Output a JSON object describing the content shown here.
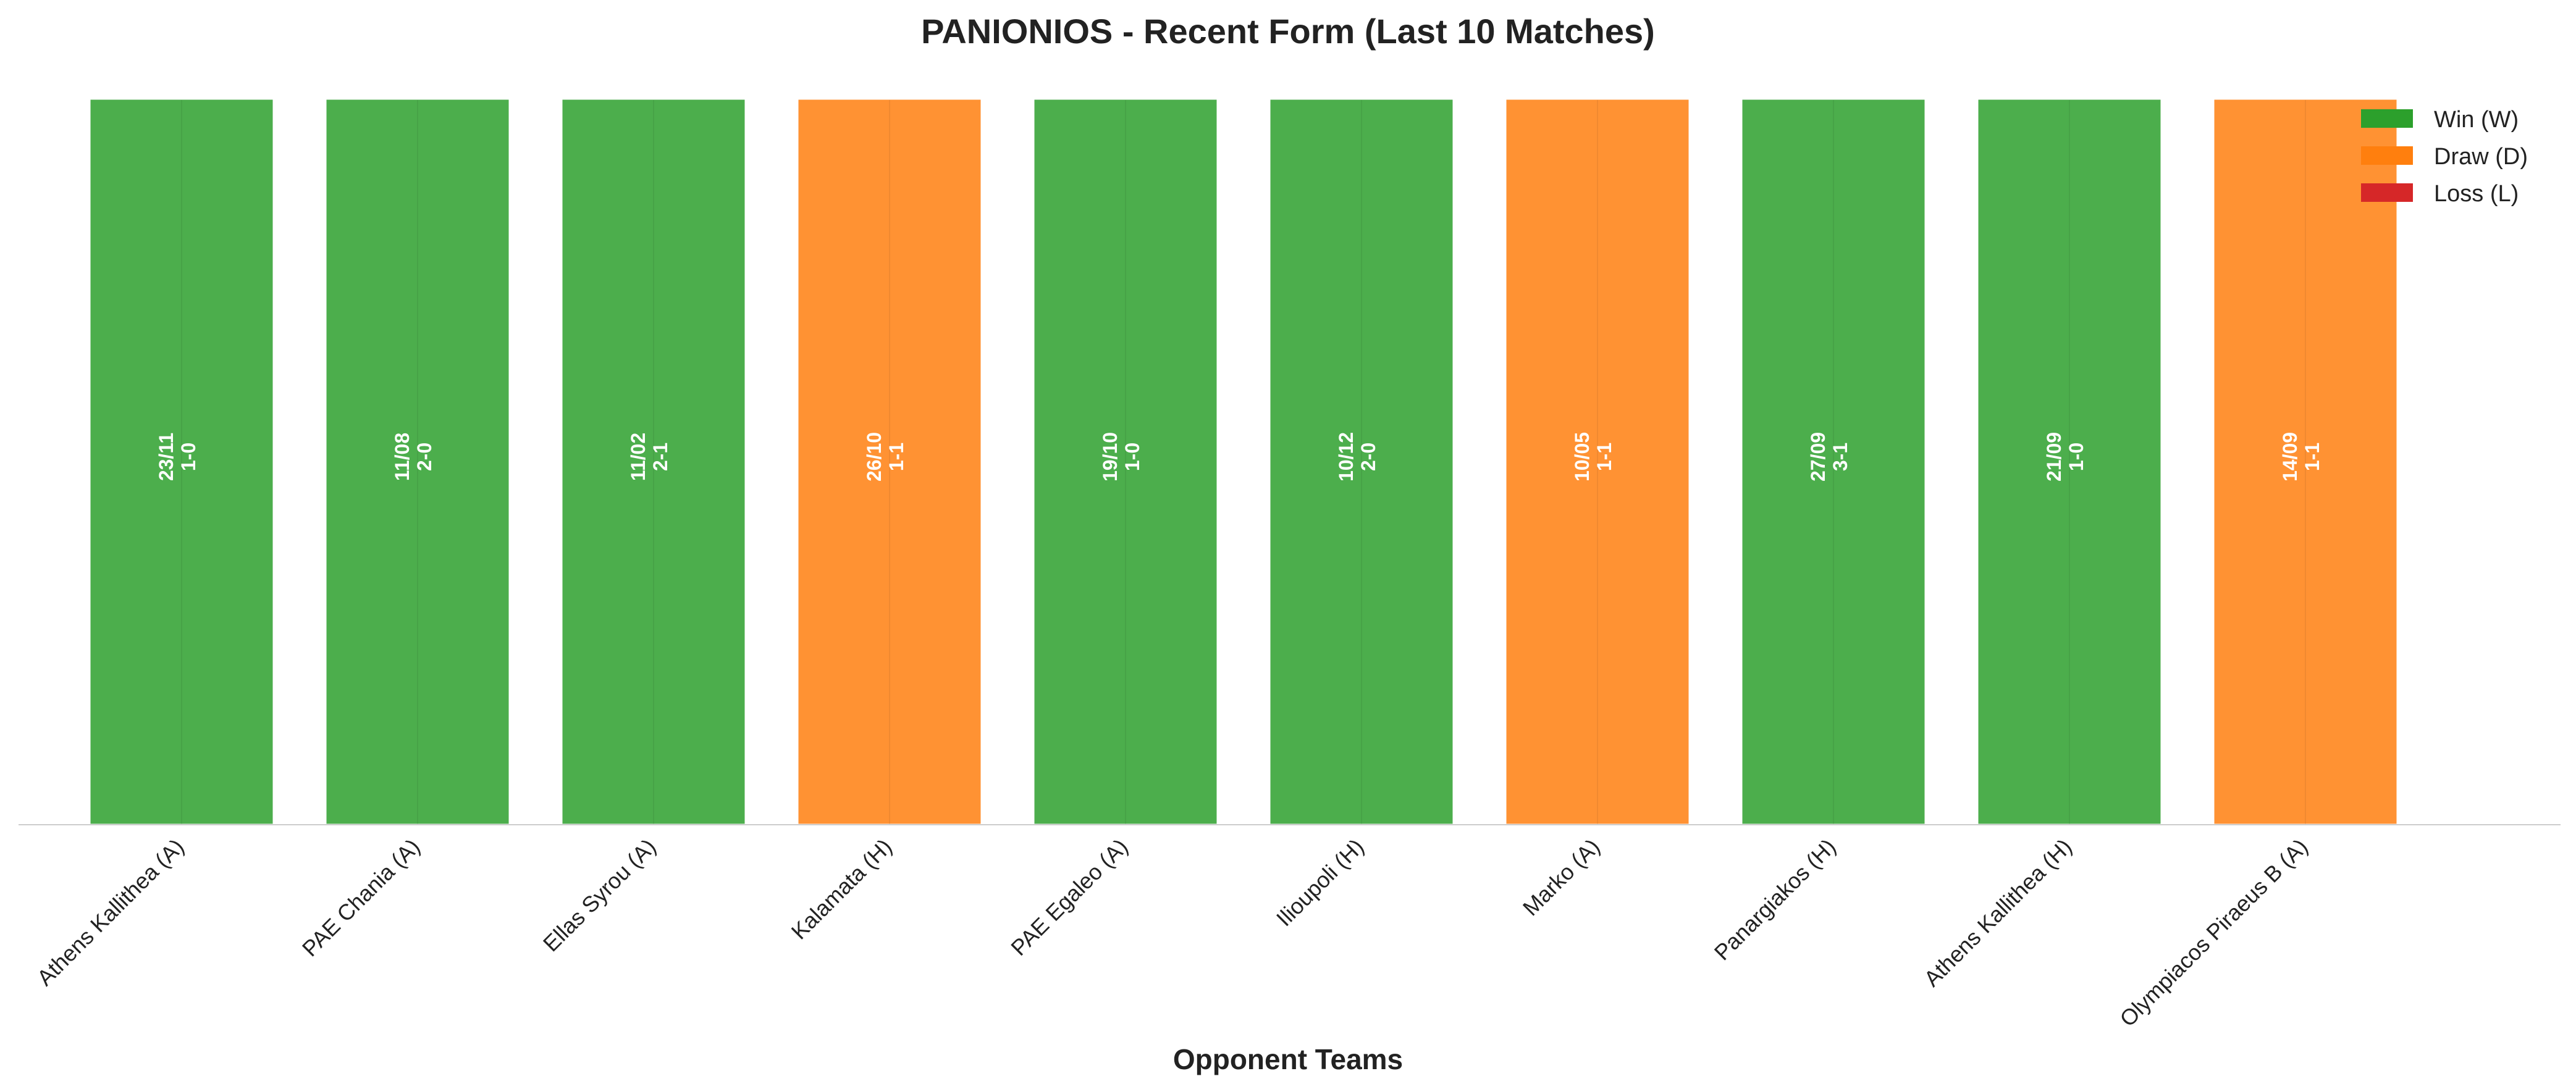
{
  "chart_data": {
    "type": "bar",
    "title": "PANIONIOS - Recent Form (Last 10 Matches)",
    "xlabel": "Opponent Teams",
    "ylabel": "",
    "ylim": [
      0,
      1
    ],
    "grid": false,
    "legend_position": "top-right",
    "categories": [
      "Athens Kallithea (A)",
      "PAE Chania (A)",
      "Ellas Syrou (A)",
      "Kalamata (H)",
      "PAE Egaleo (A)",
      "Ilioupoli (H)",
      "Marko (A)",
      "Panargiakos (H)",
      "Athens Kallithea (H)",
      "Olympiacos Piraeus B (A)"
    ],
    "values": [
      1,
      1,
      1,
      1,
      1,
      1,
      1,
      1,
      1,
      1
    ],
    "results": [
      "W",
      "W",
      "W",
      "D",
      "W",
      "W",
      "D",
      "W",
      "W",
      "D"
    ],
    "dates": [
      "23/11",
      "11/08",
      "11/02",
      "26/10",
      "19/10",
      "10/12",
      "10/05",
      "27/09",
      "21/09",
      "14/09"
    ],
    "scores": [
      "1-0",
      "2-0",
      "2-1",
      "1-1",
      "1-0",
      "2-0",
      "1-1",
      "3-1",
      "1-0",
      "1-1"
    ],
    "legend": [
      {
        "key": "W",
        "label": "Win (W)",
        "color": "#2ca02c"
      },
      {
        "key": "D",
        "label": "Draw (D)",
        "color": "#ff7f0e"
      },
      {
        "key": "L",
        "label": "Loss (L)",
        "color": "#d62728"
      }
    ],
    "colors": {
      "W": "#4cae4c",
      "D": "#ff9233",
      "L": "#d62728"
    }
  }
}
